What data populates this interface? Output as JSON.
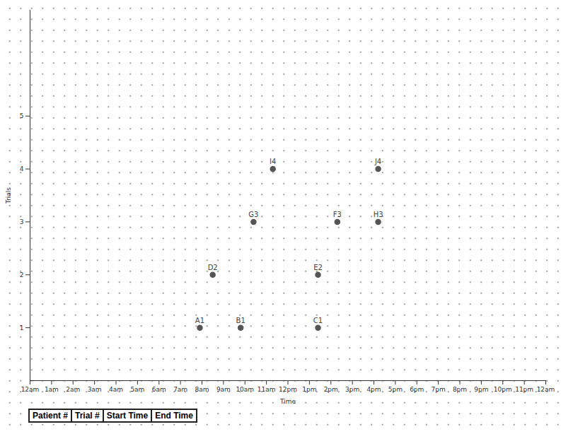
{
  "chart_data": {
    "type": "scatter",
    "x_label": "Time",
    "y_label": "Trials",
    "x": [
      7.9,
      9.8,
      13.4,
      8.5,
      13.4,
      10.4,
      14.3,
      16.2,
      11.3,
      16.2
    ],
    "values": [
      1,
      1,
      1,
      2,
      2,
      3,
      3,
      3,
      4,
      4
    ],
    "point_labels": [
      "A1",
      "B1",
      "C1",
      "D2",
      "E2",
      "G3",
      "F3",
      "H3",
      "I4",
      "J4"
    ],
    "color": "#555555",
    "marker": "circle",
    "grid": false,
    "xlim": [
      0,
      24
    ],
    "xticks": [
      {
        "value": 0,
        "label": "12am"
      },
      {
        "value": 1,
        "label": "1am"
      },
      {
        "value": 2,
        "label": "2am"
      },
      {
        "value": 3,
        "label": "3am"
      },
      {
        "value": 4,
        "label": "4am"
      },
      {
        "value": 5,
        "label": "5am"
      },
      {
        "value": 6,
        "label": "6am"
      },
      {
        "value": 7,
        "label": "7am"
      },
      {
        "value": 8,
        "label": "8am"
      },
      {
        "value": 9,
        "label": "9am"
      },
      {
        "value": 10,
        "label": "10am"
      },
      {
        "value": 11,
        "label": "11am"
      },
      {
        "value": 12,
        "label": "12pm"
      },
      {
        "value": 13,
        "label": "1pm"
      },
      {
        "value": 14,
        "label": "2pm"
      },
      {
        "value": 15,
        "label": "3pm"
      },
      {
        "value": 16,
        "label": "4pm"
      },
      {
        "value": 17,
        "label": "5pm"
      },
      {
        "value": 18,
        "label": "6pm"
      },
      {
        "value": 19,
        "label": "7pm"
      },
      {
        "value": 20,
        "label": "8pm"
      },
      {
        "value": 21,
        "label": "9pm"
      },
      {
        "value": 22,
        "label": "10pm"
      },
      {
        "value": 23,
        "label": "11pm"
      },
      {
        "value": 24,
        "label": "12am"
      }
    ],
    "ylim": [
      0,
      7
    ],
    "yticks": [
      1,
      2,
      3,
      4,
      5
    ]
  },
  "table": {
    "header": [
      "Patient #",
      "Trial #",
      "Start Time",
      "End Time"
    ]
  }
}
